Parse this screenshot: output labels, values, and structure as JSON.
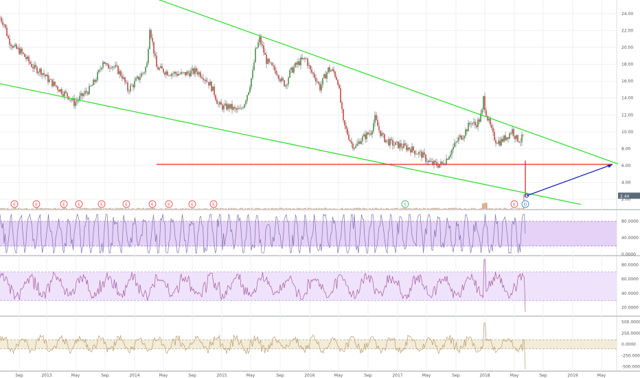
{
  "chart_data": {
    "type": "line",
    "main": {
      "y_ticks": [
        "24.00",
        "22.00",
        "20.00",
        "18.00",
        "16.00",
        "14.00",
        "12.00",
        "10.00",
        "8.00",
        "6.00",
        "4.00",
        "2.00"
      ],
      "ylim": [
        1.2,
        25.2
      ],
      "current_price": "2.44",
      "price_path": [
        [
          0,
          23.5
        ],
        [
          6,
          22.8
        ],
        [
          12,
          21
        ],
        [
          20,
          20
        ],
        [
          30,
          19.5
        ],
        [
          40,
          18.5
        ],
        [
          50,
          17.5
        ],
        [
          60,
          17.2
        ],
        [
          70,
          16.2
        ],
        [
          80,
          15.5
        ],
        [
          90,
          14.8
        ],
        [
          100,
          14.2
        ],
        [
          108,
          13.4
        ],
        [
          116,
          14
        ],
        [
          124,
          14.6
        ],
        [
          130,
          15
        ],
        [
          138,
          16
        ],
        [
          145,
          17.2
        ],
        [
          150,
          18.5
        ],
        [
          156,
          17.6
        ],
        [
          162,
          18
        ],
        [
          170,
          17.4
        ],
        [
          178,
          16.6
        ],
        [
          186,
          15
        ],
        [
          194,
          15.6
        ],
        [
          202,
          16.4
        ],
        [
          210,
          17.2
        ],
        [
          214,
          18
        ],
        [
          218,
          22.5
        ],
        [
          222,
          20.5
        ],
        [
          228,
          17.6
        ],
        [
          236,
          17.3
        ],
        [
          246,
          17
        ],
        [
          256,
          16.9
        ],
        [
          266,
          16.8
        ],
        [
          276,
          17
        ],
        [
          286,
          17.2
        ],
        [
          296,
          16.6
        ],
        [
          306,
          15.6
        ],
        [
          312,
          14.6
        ],
        [
          318,
          13.2
        ],
        [
          326,
          12.9
        ],
        [
          334,
          13
        ],
        [
          342,
          12.6
        ],
        [
          350,
          12.5
        ],
        [
          356,
          13.5
        ],
        [
          362,
          15
        ],
        [
          368,
          17
        ],
        [
          372,
          19.5
        ],
        [
          378,
          21
        ],
        [
          382,
          20
        ],
        [
          388,
          18.4
        ],
        [
          396,
          17.6
        ],
        [
          404,
          17
        ],
        [
          410,
          16
        ],
        [
          416,
          15.6
        ],
        [
          422,
          17
        ],
        [
          430,
          17.8
        ],
        [
          438,
          18.4
        ],
        [
          446,
          18.6
        ],
        [
          452,
          17.2
        ],
        [
          458,
          16.6
        ],
        [
          462,
          16
        ],
        [
          466,
          15.2
        ],
        [
          472,
          16.4
        ],
        [
          478,
          17.4
        ],
        [
          486,
          17.1
        ],
        [
          492,
          16
        ],
        [
          496,
          13.5
        ],
        [
          500,
          11
        ],
        [
          506,
          9.8
        ],
        [
          512,
          8.6
        ],
        [
          518,
          8.2
        ],
        [
          524,
          9
        ],
        [
          532,
          9.5
        ],
        [
          540,
          10
        ],
        [
          546,
          11.6
        ],
        [
          552,
          10.2
        ],
        [
          558,
          9.3
        ],
        [
          566,
          8.8
        ],
        [
          574,
          8.5
        ],
        [
          582,
          8.4
        ],
        [
          590,
          8.2
        ],
        [
          598,
          8
        ],
        [
          606,
          7.6
        ],
        [
          614,
          7.3
        ],
        [
          620,
          6.8
        ],
        [
          626,
          6.3
        ],
        [
          632,
          6.2
        ],
        [
          638,
          6.1
        ],
        [
          644,
          6.2
        ],
        [
          650,
          6.8
        ],
        [
          656,
          7.6
        ],
        [
          662,
          8.4
        ],
        [
          668,
          9.2
        ],
        [
          674,
          9.6
        ],
        [
          680,
          10.4
        ],
        [
          686,
          11.2
        ],
        [
          692,
          10.8
        ],
        [
          698,
          11.4
        ],
        [
          702,
          12.4
        ],
        [
          704,
          14
        ],
        [
          706,
          13
        ],
        [
          710,
          11.6
        ],
        [
          714,
          10.6
        ],
        [
          718,
          9.6
        ],
        [
          722,
          9
        ],
        [
          728,
          8.8
        ],
        [
          734,
          9.2
        ],
        [
          740,
          9.6
        ],
        [
          746,
          10.2
        ],
        [
          752,
          9.2
        ],
        [
          758,
          9
        ],
        [
          763,
          9.6
        ],
        [
          765,
          6.2
        ],
        [
          767,
          2.44
        ]
      ],
      "trendlines": [
        {
          "color": "#33dd33",
          "x0": 212,
          "y0": 26.2,
          "x1": 900,
          "y1": 6.2
        },
        {
          "color": "#33dd33",
          "x0": 0,
          "y0": 15.7,
          "x1": 846,
          "y1": 1.4
        },
        {
          "color": "#ee2222",
          "x0": 228,
          "y0": 6.15,
          "x1": 892,
          "y1": 6.15
        },
        {
          "color": "#1a22bb",
          "x0": 767,
          "y0": 2.44,
          "x1": 892,
          "y1": 6.15
        }
      ]
    },
    "events": {
      "earnings": {
        "letter": "E",
        "color": "#e05555",
        "x": [
          21,
          53,
          93,
          115,
          148,
          184,
          222,
          246,
          280,
          311,
          749
        ]
      },
      "split": {
        "letter": "S",
        "color": "#55aa77",
        "x": [
          590
        ]
      },
      "dividend": {
        "letter": "D",
        "color": "#4488cc",
        "x": [
          765
        ]
      }
    },
    "stoch": {
      "y_ticks": [
        "80.0000",
        "40.0000",
        "0.0000"
      ],
      "ylim": [
        0,
        100
      ],
      "band": [
        20,
        80
      ],
      "seed": 17
    },
    "rsi": {
      "y_ticks": [
        "80.0000",
        "60.0000",
        "40.0000",
        "20.0000"
      ],
      "ylim": [
        10,
        90
      ],
      "band": [
        30,
        70
      ],
      "seed": 29
    },
    "cci": {
      "y_ticks": [
        "500.0000",
        "250.0000",
        "0.0000",
        "-250.0000",
        "-500.0000"
      ],
      "ylim": [
        -600,
        600
      ],
      "band": [
        -100,
        100
      ],
      "seed": 41
    },
    "x_ticks": [
      {
        "label": "Sep",
        "x": 28
      },
      {
        "label": "2013",
        "x": 68
      },
      {
        "label": "May",
        "x": 110
      },
      {
        "label": "Sep",
        "x": 153
      },
      {
        "label": "2014",
        "x": 196
      },
      {
        "label": "May",
        "x": 238
      },
      {
        "label": "Sep",
        "x": 280
      },
      {
        "label": "2015",
        "x": 323
      },
      {
        "label": "May",
        "x": 365
      },
      {
        "label": "Sep",
        "x": 408
      },
      {
        "label": "2016",
        "x": 451
      },
      {
        "label": "May",
        "x": 493
      },
      {
        "label": "Sep",
        "x": 536
      },
      {
        "label": "2017",
        "x": 579
      },
      {
        "label": "May",
        "x": 621
      },
      {
        "label": "Sep",
        "x": 664
      },
      {
        "label": "2018",
        "x": 706
      },
      {
        "label": "May",
        "x": 749
      },
      {
        "label": "Sep",
        "x": 791
      },
      {
        "label": "2019",
        "x": 834
      },
      {
        "label": "May",
        "x": 876
      }
    ]
  }
}
